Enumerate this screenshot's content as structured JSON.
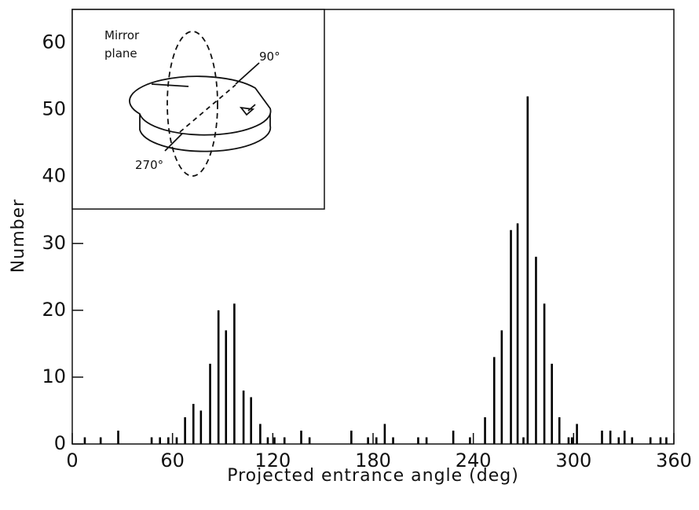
{
  "chart_data": {
    "type": "stem",
    "x_label": "Projected entrance angle (deg)",
    "y_label": "Number",
    "color": "#000000",
    "x": [
      7.5,
      17,
      27.5,
      47.5,
      52.5,
      57.5,
      62.5,
      67.5,
      72.5,
      77,
      82.5,
      87.5,
      92,
      97,
      102.5,
      107,
      112.5,
      117,
      121,
      127,
      137,
      142,
      167,
      177,
      182,
      187,
      192,
      207,
      212,
      228,
      238,
      247,
      252.5,
      257,
      262.5,
      266.5,
      270,
      272.5,
      277.5,
      282.5,
      287,
      291.5,
      297,
      299,
      302,
      317,
      322,
      327,
      330.5,
      335,
      346,
      352,
      355.5
    ],
    "values": [
      1,
      1,
      2,
      1,
      1,
      1,
      1,
      4,
      6,
      5,
      12,
      20,
      17,
      21,
      8,
      7,
      3,
      1,
      1,
      1,
      2,
      1,
      2,
      1,
      1,
      3,
      1,
      1,
      1,
      2,
      1,
      4,
      13,
      17,
      32,
      33,
      1,
      52,
      28,
      21,
      12,
      4,
      1,
      1,
      3,
      2,
      2,
      1,
      2,
      1,
      1,
      1,
      1
    ],
    "xlim": [
      0,
      360
    ],
    "xticks": [
      0,
      60,
      120,
      180,
      240,
      300,
      360
    ],
    "ylim": [
      0,
      65
    ],
    "yticks": [
      0,
      10,
      20,
      30,
      40,
      50,
      60
    ],
    "inset": {
      "label_mirror": "Mirror",
      "label_plane": "plane",
      "label_90": "90°",
      "label_270": "270°"
    }
  }
}
